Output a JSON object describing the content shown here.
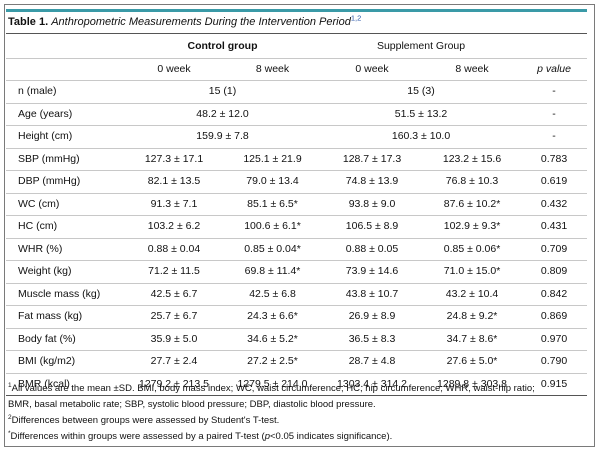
{
  "caption": {
    "number": "Table 1.",
    "title": "Anthropometric Measurements During the Intervention Period",
    "refs": "1,2"
  },
  "groups": {
    "control": "Control group",
    "supplement": "Supplement Group"
  },
  "subheaders": [
    "0 week",
    "8 week",
    "0 week",
    "8 week",
    "p value"
  ],
  "rows": [
    {
      "label": "n (male)",
      "c0": "15 (1)",
      "c8": "",
      "s0": "15 (3)",
      "s8": "",
      "p": "-",
      "merged": true
    },
    {
      "label": "Age (years)",
      "c0": "48.2 ± 12.0",
      "c8": "",
      "s0": "51.5 ± 13.2",
      "s8": "",
      "p": "-",
      "merged": true
    },
    {
      "label": "Height (cm)",
      "c0": "159.9 ± 7.8",
      "c8": "",
      "s0": "160.3 ± 10.0",
      "s8": "",
      "p": "-",
      "merged": true
    },
    {
      "label": "SBP (mmHg)",
      "c0": "127.3 ± 17.1",
      "c8": "125.1 ± 21.9",
      "s0": "128.7 ± 17.3",
      "s8": "123.2 ± 15.6",
      "p": "0.783"
    },
    {
      "label": "DBP (mmHg)",
      "c0": "82.1 ± 13.5",
      "c8": "79.0 ± 13.4",
      "s0": "74.8 ± 13.9",
      "s8": "76.8 ± 10.3",
      "p": "0.619"
    },
    {
      "label": "WC (cm)",
      "c0": "91.3 ± 7.1",
      "c8": "85.1 ± 6.5*",
      "s0": "93.8 ± 9.0",
      "s8": "87.6 ± 10.2*",
      "p": "0.432"
    },
    {
      "label": "HC (cm)",
      "c0": "103.2 ± 6.2",
      "c8": "100.6 ± 6.1*",
      "s0": "106.5 ± 8.9",
      "s8": "102.9 ± 9.3*",
      "p": "0.431"
    },
    {
      "label": "WHR (%)",
      "c0": "0.88 ± 0.04",
      "c8": "0.85 ± 0.04*",
      "s0": "0.88 ± 0.05",
      "s8": "0.85 ± 0.06*",
      "p": "0.709"
    },
    {
      "label": "Weight (kg)",
      "c0": "71.2 ± 11.5",
      "c8": "69.8 ± 11.4*",
      "s0": "73.9 ± 14.6",
      "s8": "71.0 ± 15.0*",
      "p": "0.809"
    },
    {
      "label": "Muscle mass (kg)",
      "c0": "42.5 ± 6.7",
      "c8": "42.5 ± 6.8",
      "s0": "43.8 ± 10.7",
      "s8": "43.2 ± 10.4",
      "p": "0.842"
    },
    {
      "label": "Fat mass (kg)",
      "c0": "25.7 ± 6.7",
      "c8": "24.3 ± 6.6*",
      "s0": "26.9 ± 8.9",
      "s8": "24.8 ± 9.2*",
      "p": "0.869"
    },
    {
      "label": "Body fat (%)",
      "c0": "35.9 ± 5.0",
      "c8": "34.6 ± 5.2*",
      "s0": "36.5 ± 8.3",
      "s8": "34.7 ± 8.6*",
      "p": "0.970"
    },
    {
      "label": "BMI (kg/m2)",
      "c0": "27.7 ± 2.4",
      "c8": "27.2 ± 2.5*",
      "s0": "28.7 ± 4.8",
      "s8": "27.6 ± 5.0*",
      "p": "0.790"
    },
    {
      "label": "BMR (kcal)",
      "c0": "1279.2 ± 213.5",
      "c8": "1279.5 ± 214.0",
      "s0": "1303.4 ± 314.2",
      "s8": "1289.8 ± 303.8",
      "p": "0.915"
    }
  ],
  "footnotes": {
    "n1_mark": "1",
    "n1_line1": "All values are the mean ±SD. BMI, body mass index; WC, waist circumference; HC, hip circumference; WHR, waist-hip ratio;",
    "n1_line2": "BMR, basal metabolic rate; SBP, systolic blood pressure; DBP, diastolic blood pressure.",
    "n2_mark": "2",
    "n2_text": "Differences between groups were assessed by Student's T-test.",
    "n3_mark": "*",
    "n3_pre": "Differences within groups were assessed by a paired T-test (",
    "n3_p": "p",
    "n3_post": "<0.05 indicates significance)."
  }
}
